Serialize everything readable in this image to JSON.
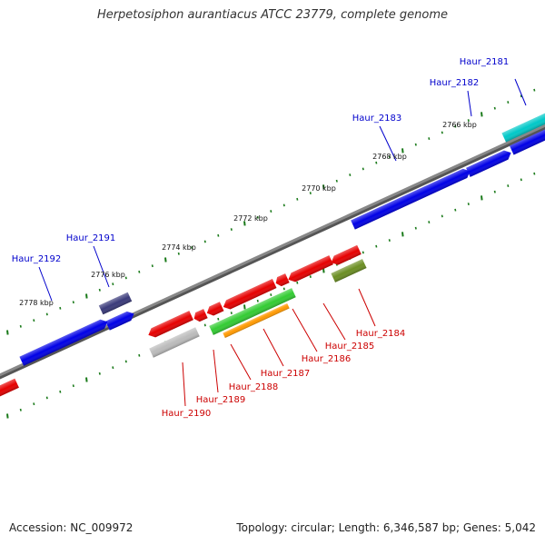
{
  "title": "Herpetosiphon aurantiacus ATCC 23779, complete genome",
  "footer": {
    "accession": "Accession: NC_009972",
    "topology": "Topology: circular; Length: 6,346,587 bp; Genes: 5,042"
  },
  "colors": {
    "backbone": "#888888",
    "tick": "#1a7a1a",
    "forward_label": "#0000cc",
    "reverse_label": "#cc0000",
    "blue": "#0000e6",
    "red": "#e60000",
    "cyan": "#00c8c8",
    "navy": "#3a3a7a",
    "olive": "#6b8e23",
    "green": "#33cc33",
    "orange": "#ff9900",
    "gray": "#bbbbbb"
  },
  "scale_labels": [
    "2766 kbp",
    "2768 kbp",
    "2770 kbp",
    "2772 kbp",
    "2774 kbp",
    "2776 kbp",
    "2778 kbp"
  ],
  "forward_genes": [
    {
      "name": "Haur_2181",
      "color": "cyan"
    },
    {
      "name": "Haur_2182",
      "color": "blue"
    },
    {
      "name": "Haur_2183",
      "color": "blue"
    },
    {
      "name": "Haur_2191",
      "color": "navy"
    },
    {
      "name": "Haur_2192",
      "color": "blue"
    }
  ],
  "reverse_genes": [
    {
      "name": "Haur_2184",
      "color": "olive"
    },
    {
      "name": "Haur_2185",
      "color": "red"
    },
    {
      "name": "Haur_2186",
      "color": "red"
    },
    {
      "name": "Haur_2187",
      "color": "green"
    },
    {
      "name": "Haur_2188",
      "color": "orange"
    },
    {
      "name": "Haur_2189",
      "color": "red"
    },
    {
      "name": "Haur_2190",
      "color": "gray"
    }
  ]
}
